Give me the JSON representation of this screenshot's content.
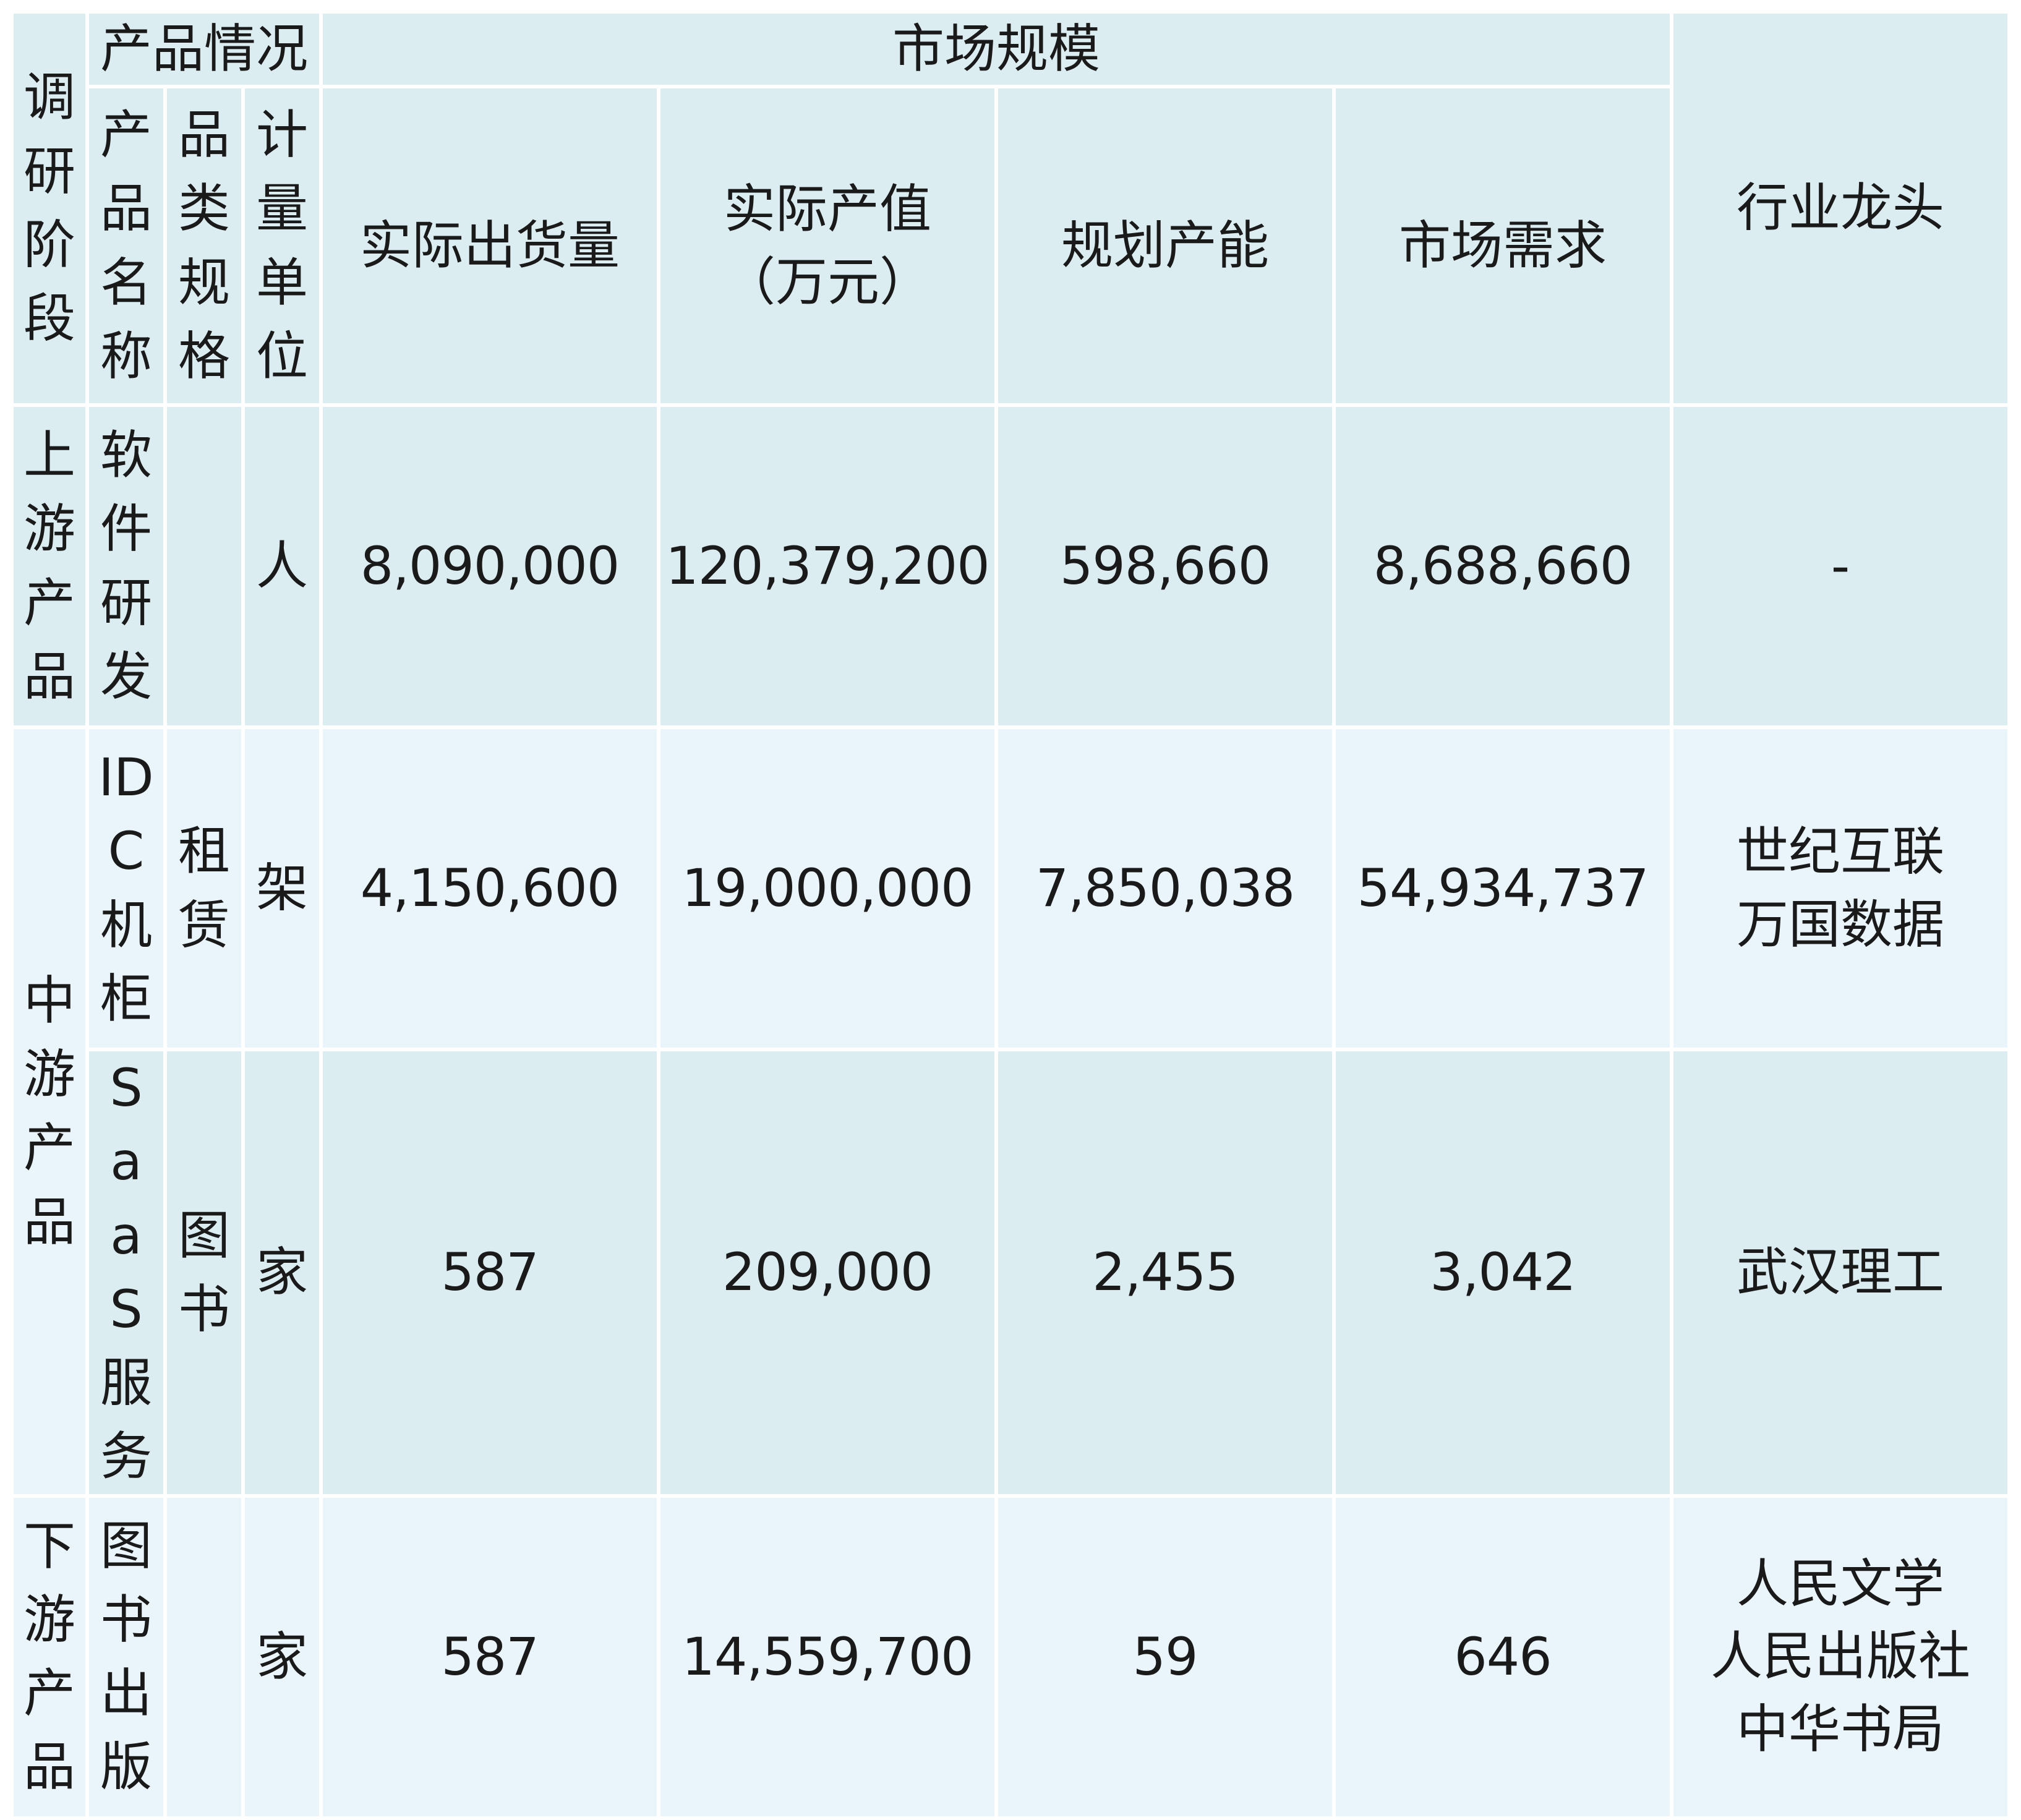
{
  "header": {
    "stage": "调研阶段",
    "product_group": "产品情况",
    "market_group": "市场规模",
    "product_name": "产品名称",
    "product_spec": "品类规格",
    "unit": "计量单位",
    "actual_shipment": "实际出货量",
    "actual_output_l1": "实际产值",
    "actual_output_l2": "（万元）",
    "planned_capacity": "规划产能",
    "market_demand": "市场需求",
    "leader": "行业龙头"
  },
  "rows": [
    {
      "stage": "上游产品",
      "name": "软件研发",
      "spec": "",
      "unit": "人",
      "shipment": "8,090,000",
      "output": "120,379,200",
      "capacity": "598,660",
      "demand": "8,688,660",
      "leader": [
        "-"
      ]
    },
    {
      "stage": "中游产品",
      "name": "IDC机柜",
      "spec": "租赁",
      "unit": "架",
      "shipment": "4,150,600",
      "output": "19,000,000",
      "capacity": "7,850,038",
      "demand": "54,934,737",
      "leader": [
        "世纪互联",
        "万国数据"
      ]
    },
    {
      "stage": "中游产品",
      "name": "SaaS服务",
      "spec": "图书",
      "unit": "家",
      "shipment": "587",
      "output": "209,000",
      "capacity": "2,455",
      "demand": "3,042",
      "leader": [
        "武汉理工"
      ]
    },
    {
      "stage": "下游产品",
      "name": "图书出版",
      "spec": "",
      "unit": "家",
      "shipment": "587",
      "output": "14,559,700",
      "capacity": "59",
      "demand": "646",
      "leader": [
        "人民文学",
        "人民出版社",
        "中华书局"
      ]
    }
  ]
}
